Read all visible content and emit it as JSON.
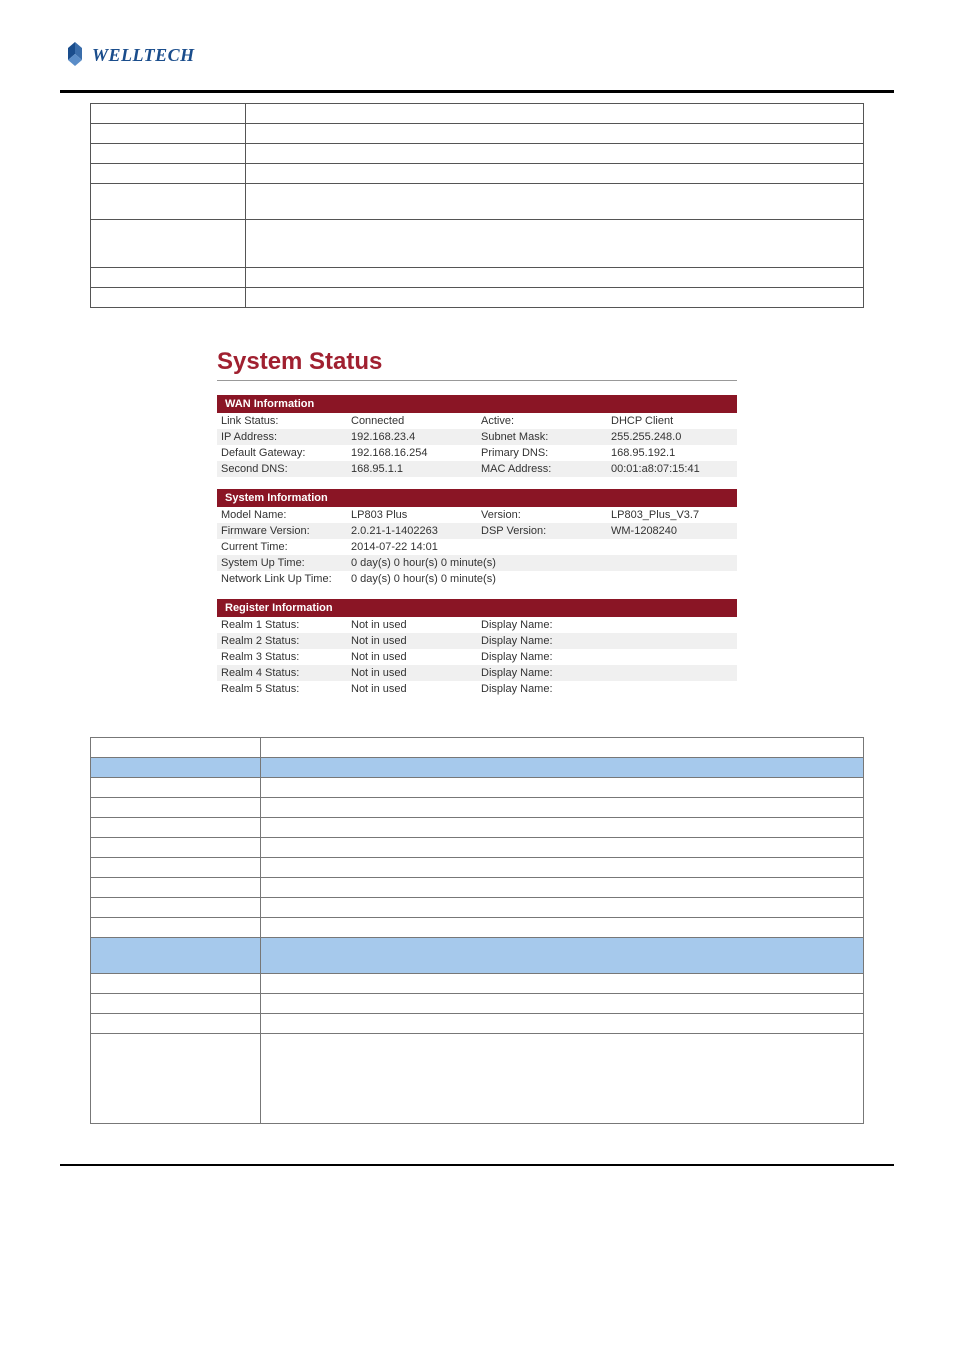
{
  "brand": {
    "name": "WELLTECH",
    "logo_color": "#1a4d8c"
  },
  "top_table": {
    "rows": [
      {
        "c1": "",
        "c2": "",
        "h": "n"
      },
      {
        "c1": "",
        "c2": "",
        "h": "n"
      },
      {
        "c1": "",
        "c2": "",
        "h": "n"
      },
      {
        "c1": "",
        "c2": "",
        "h": "n"
      },
      {
        "c1": "",
        "c2": "",
        "h": "t"
      },
      {
        "c1": "",
        "c2": "",
        "h": "t2"
      },
      {
        "c1": "",
        "c2": "",
        "h": "n"
      },
      {
        "c1": "",
        "c2": "",
        "h": "n"
      }
    ]
  },
  "system_status": {
    "title": "System Status",
    "title_color": "#a02030",
    "header_bg": "#8a1525",
    "sections": [
      {
        "header": "WAN Information",
        "layout": 4,
        "rows": [
          [
            "Link Status:",
            "Connected",
            "Active:",
            "DHCP Client"
          ],
          [
            "IP Address:",
            "192.168.23.4",
            "Subnet Mask:",
            "255.255.248.0"
          ],
          [
            "Default Gateway:",
            "192.168.16.254",
            "Primary DNS:",
            "168.95.192.1"
          ],
          [
            "Second DNS:",
            "168.95.1.1",
            "MAC Address:",
            "00:01:a8:07:15:41"
          ]
        ]
      },
      {
        "header": "System Information",
        "layout": 0,
        "rows4": [
          [
            "Model Name:",
            "LP803 Plus",
            "Version:",
            "LP803_Plus_V3.7"
          ],
          [
            "Firmware Version:",
            "2.0.21-1-1402263",
            "DSP Version:",
            "WM-1208240"
          ]
        ],
        "rows2": [
          [
            "Current Time:",
            "2014-07-22 14:01"
          ],
          [
            "System Up Time:",
            "0 day(s) 0 hour(s) 0 minute(s)"
          ],
          [
            "Network Link Up Time:",
            "0 day(s) 0 hour(s) 0 minute(s)"
          ]
        ]
      },
      {
        "header": "Register Information",
        "layout": 4,
        "rows": [
          [
            "Realm 1 Status:",
            "Not in used",
            "Display Name:",
            ""
          ],
          [
            "Realm 2 Status:",
            "Not in used",
            "Display Name:",
            ""
          ],
          [
            "Realm 3 Status:",
            "Not in used",
            "Display Name:",
            ""
          ],
          [
            "Realm 4 Status:",
            "Not in used",
            "Display Name:",
            ""
          ],
          [
            "Realm 5 Status:",
            "Not in used",
            "Display Name:",
            ""
          ]
        ]
      }
    ]
  },
  "bottom_table": {
    "header_bg": "#a6c9ec",
    "rows": [
      {
        "type": "n",
        "c1": "",
        "c2": ""
      },
      {
        "type": "hdr",
        "c1": "",
        "c2": ""
      },
      {
        "type": "n",
        "c1": "",
        "c2": ""
      },
      {
        "type": "n",
        "c1": "",
        "c2": ""
      },
      {
        "type": "n",
        "c1": "",
        "c2": ""
      },
      {
        "type": "n",
        "c1": "",
        "c2": ""
      },
      {
        "type": "n",
        "c1": "",
        "c2": ""
      },
      {
        "type": "n",
        "c1": "",
        "c2": ""
      },
      {
        "type": "n",
        "c1": "",
        "c2": ""
      },
      {
        "type": "n",
        "c1": "",
        "c2": ""
      },
      {
        "type": "hdr-tall",
        "c1": "",
        "c2": ""
      },
      {
        "type": "n",
        "c1": "",
        "c2": ""
      },
      {
        "type": "n",
        "c1": "",
        "c2": ""
      },
      {
        "type": "n",
        "c1": "",
        "c2": ""
      },
      {
        "type": "tall3",
        "c1": "",
        "c2": ""
      }
    ]
  }
}
